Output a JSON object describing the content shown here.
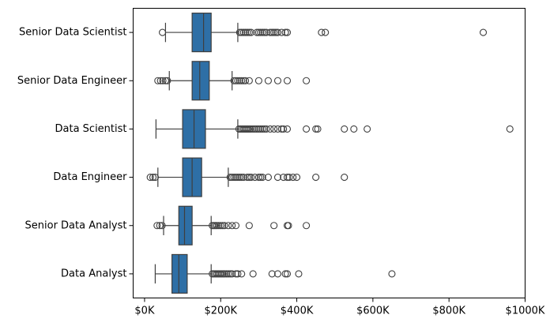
{
  "chart_data": {
    "type": "boxplot",
    "orientation": "horizontal",
    "title": "",
    "xlabel": "",
    "ylabel": "",
    "xlim": [
      -30000,
      1000000
    ],
    "x_ticks": [
      {
        "value": 0,
        "label": "$0K"
      },
      {
        "value": 200000,
        "label": "$200K"
      },
      {
        "value": 400000,
        "label": "$400K"
      },
      {
        "value": 600000,
        "label": "$600K"
      },
      {
        "value": 800000,
        "label": "$800K"
      },
      {
        "value": 1000000,
        "label": "$1000K"
      }
    ],
    "grid": false,
    "box_color": "#2e6fa6",
    "line_color": "#3f3f3f",
    "categories": [
      {
        "name": "Senior Data Scientist",
        "whisker_low": 55000,
        "q1": 125000,
        "median": 155000,
        "q3": 175000,
        "whisker_high": 245000,
        "outliers": [
          47000,
          250000,
          255000,
          260000,
          265000,
          270000,
          275000,
          280000,
          295000,
          300000,
          305000,
          310000,
          315000,
          320000,
          330000,
          335000,
          340000,
          345000,
          350000,
          360000,
          370000,
          375000,
          465000,
          475000,
          890000
        ]
      },
      {
        "name": "Senior Data Engineer",
        "whisker_low": 65000,
        "q1": 125000,
        "median": 145000,
        "q3": 170000,
        "whisker_high": 230000,
        "outliers": [
          35000,
          42000,
          48000,
          55000,
          60000,
          235000,
          240000,
          245000,
          250000,
          255000,
          260000,
          265000,
          275000,
          300000,
          325000,
          350000,
          375000,
          425000
        ]
      },
      {
        "name": "Data Scientist",
        "whisker_low": 30000,
        "q1": 100000,
        "median": 130000,
        "q3": 160000,
        "whisker_high": 245000,
        "outliers": [
          248000,
          252000,
          256000,
          260000,
          264000,
          268000,
          272000,
          276000,
          280000,
          285000,
          290000,
          295000,
          300000,
          305000,
          310000,
          315000,
          320000,
          330000,
          340000,
          350000,
          360000,
          365000,
          375000,
          425000,
          450000,
          455000,
          525000,
          550000,
          585000,
          960000
        ]
      },
      {
        "name": "Data Engineer",
        "whisker_low": 35000,
        "q1": 100000,
        "median": 125000,
        "q3": 150000,
        "whisker_high": 220000,
        "outliers": [
          15000,
          22000,
          28000,
          225000,
          230000,
          235000,
          240000,
          245000,
          250000,
          255000,
          260000,
          270000,
          275000,
          280000,
          290000,
          300000,
          305000,
          310000,
          325000,
          350000,
          365000,
          375000,
          380000,
          390000,
          400000,
          450000,
          525000
        ]
      },
      {
        "name": "Senior Data Analyst",
        "whisker_low": 50000,
        "q1": 90000,
        "median": 105000,
        "q3": 125000,
        "whisker_high": 175000,
        "outliers": [
          33000,
          40000,
          46000,
          178000,
          182000,
          186000,
          190000,
          195000,
          200000,
          205000,
          210000,
          220000,
          230000,
          240000,
          275000,
          340000,
          375000,
          378000,
          425000
        ]
      },
      {
        "name": "Data Analyst",
        "whisker_low": 28000,
        "q1": 72000,
        "median": 90000,
        "q3": 112000,
        "whisker_high": 175000,
        "outliers": [
          178000,
          182000,
          186000,
          190000,
          194000,
          198000,
          202000,
          206000,
          210000,
          215000,
          220000,
          225000,
          230000,
          240000,
          245000,
          255000,
          285000,
          335000,
          350000,
          370000,
          375000,
          405000,
          650000
        ]
      }
    ]
  }
}
